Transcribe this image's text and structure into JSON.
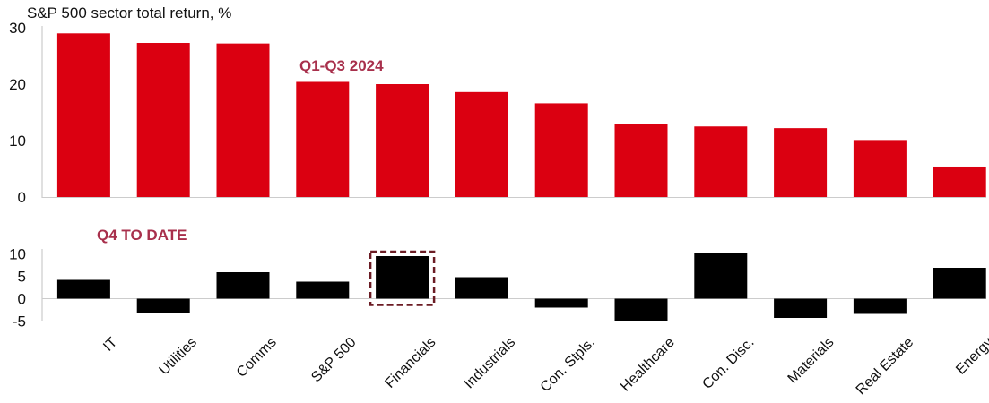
{
  "chart_data": [
    {
      "type": "bar",
      "title": "S&P 500 sector total return, %",
      "annotation": "Q1-Q3 2024",
      "categories": [
        "IT",
        "Utilities",
        "Comms",
        "S&P 500",
        "Financials",
        "Industrials",
        "Con. Stpls.",
        "Healthcare",
        "Con. Disc.",
        "Materials",
        "Real Estate",
        "Energy"
      ],
      "values": [
        29.0,
        27.3,
        27.2,
        20.4,
        20.0,
        18.6,
        16.6,
        13.0,
        12.5,
        12.2,
        10.1,
        5.4
      ],
      "ylim": [
        0,
        30
      ],
      "yticks": [
        "0",
        "10",
        "20",
        "30"
      ],
      "color": "#db0011",
      "grid": false
    },
    {
      "type": "bar",
      "annotation": "Q4 TO DATE",
      "categories": [
        "IT",
        "Utilities",
        "Comms",
        "S&P 500",
        "Financials",
        "Industrials",
        "Con. Stpls.",
        "Healthcare",
        "Con. Disc.",
        "Materials",
        "Real Estate",
        "Energy"
      ],
      "values": [
        4.2,
        -3.2,
        5.9,
        3.8,
        9.5,
        4.8,
        -2.0,
        -4.9,
        10.3,
        -4.3,
        -3.4,
        6.9
      ],
      "ylim": [
        -5,
        10
      ],
      "yticks": [
        "-5",
        "0",
        "5",
        "10"
      ],
      "color": "#000000",
      "highlight": "Financials",
      "highlight_color": "#6b1c24",
      "grid": false
    }
  ],
  "colors": {
    "annotation": "#a8304c",
    "axis": "#cccccc"
  }
}
